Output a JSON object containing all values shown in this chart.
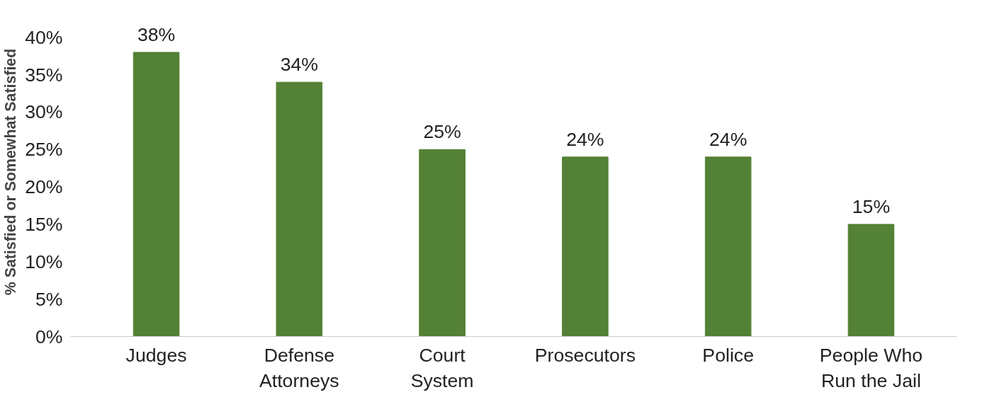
{
  "chart_data": {
    "type": "bar",
    "ylabel": "% Satisfied or Somewhat Satisfied",
    "categories": [
      "Judges",
      "Defense\nAttorneys",
      "Court\nSystem",
      "Prosecutors",
      "Police",
      "People Who\nRun the Jail"
    ],
    "values": [
      38,
      34,
      25,
      24,
      24,
      15
    ],
    "value_labels": [
      "38%",
      "34%",
      "25%",
      "24%",
      "24%",
      "15%"
    ],
    "color": "#538135",
    "ylim": [
      0,
      40
    ],
    "yticks": [
      {
        "value": 0,
        "label": "0%"
      },
      {
        "value": 5,
        "label": "5%"
      },
      {
        "value": 10,
        "label": "10%"
      },
      {
        "value": 15,
        "label": "15%"
      },
      {
        "value": 20,
        "label": "20%"
      },
      {
        "value": 25,
        "label": "25%"
      },
      {
        "value": 30,
        "label": "30%"
      },
      {
        "value": 35,
        "label": "35%"
      },
      {
        "value": 40,
        "label": "40%"
      }
    ],
    "grid": false
  }
}
